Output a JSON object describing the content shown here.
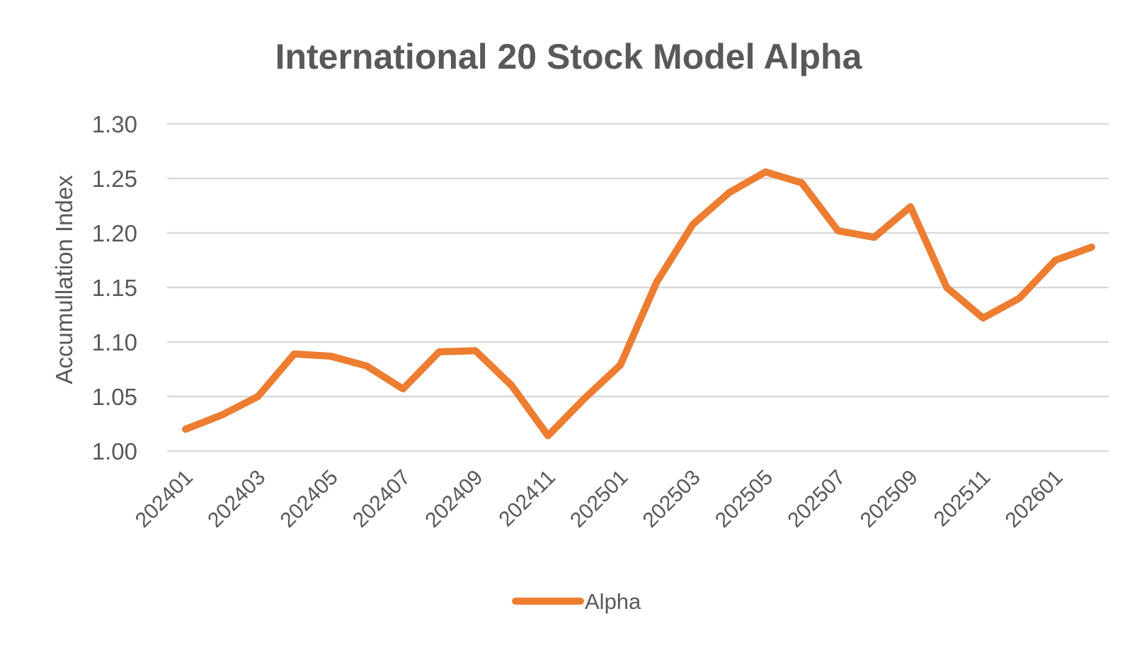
{
  "chart_data": {
    "type": "line",
    "title": "International 20 Stock Model Alpha",
    "xlabel": "",
    "ylabel": "Accumullation Index",
    "ylim": [
      1.0,
      1.3
    ],
    "yticks": [
      "1.00",
      "1.05",
      "1.10",
      "1.15",
      "1.20",
      "1.25",
      "1.30"
    ],
    "grid": true,
    "legend_position": "bottom",
    "line_color": "#ED7D31",
    "categories": [
      "202401",
      "202402",
      "202403",
      "202404",
      "202405",
      "202406",
      "202407",
      "202408",
      "202409",
      "202410",
      "202411",
      "202412",
      "202501",
      "202502",
      "202503",
      "202504",
      "202505",
      "202506",
      "202507",
      "202508",
      "202509",
      "202510",
      "202511",
      "202512",
      "202601",
      "202602"
    ],
    "x_tick_labels": [
      "202401",
      "202403",
      "202405",
      "202407",
      "202409",
      "202411",
      "202501",
      "202503",
      "202505",
      "202507",
      "202509",
      "202511",
      "202601"
    ],
    "series": [
      {
        "name": "Alpha",
        "values": [
          1.02,
          1.033,
          1.05,
          1.089,
          1.087,
          1.078,
          1.057,
          1.091,
          1.092,
          1.06,
          1.014,
          1.048,
          1.079,
          1.155,
          1.208,
          1.237,
          1.256,
          1.246,
          1.202,
          1.196,
          1.224,
          1.15,
          1.122,
          1.14,
          1.175,
          1.187
        ]
      }
    ]
  }
}
